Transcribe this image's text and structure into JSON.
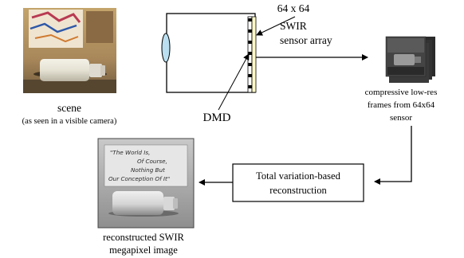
{
  "scene": {
    "label": "scene",
    "caption": "(as seen in a visible camera)"
  },
  "sensor": {
    "label_line1": "64 x 64",
    "label_line2": "SWIR",
    "label_line3": "sensor array"
  },
  "dmd": {
    "label": "DMD"
  },
  "frames": {
    "label_line1": "compressive low-res",
    "label_line2": "frames from 64x64",
    "label_line3": "sensor"
  },
  "reconstruction": {
    "label_line1": "Total variation-based",
    "label_line2": "reconstruction"
  },
  "output": {
    "label_line1": "reconstructed SWIR",
    "label_line2": "megapixel image",
    "sign_line1": "\"The World Is,",
    "sign_line2": "Of Course,",
    "sign_line3": "Nothing But",
    "sign_line4": "Our Conception Of It\""
  },
  "colors": {
    "lens": "#b9dff0",
    "sensor_strip": "#fff9c8",
    "arrow": "#000000"
  }
}
